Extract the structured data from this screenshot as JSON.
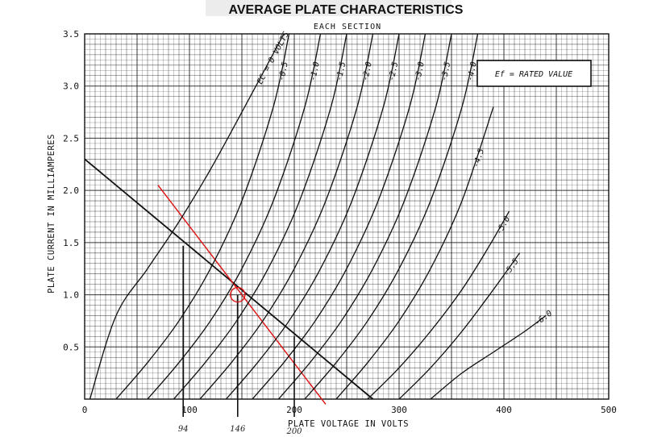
{
  "chart_data": {
    "type": "line",
    "title": "AVERAGE PLATE CHARACTERISTICS",
    "subtitle": "EACH SECTION",
    "xlabel": "PLATE VOLTAGE IN VOLTS",
    "ylabel": "PLATE CURRENT IN MILLIAMPERES",
    "xlim": [
      0,
      500
    ],
    "ylim": [
      0,
      3.5
    ],
    "x_ticks": [
      "0",
      "100",
      "200",
      "300",
      "400",
      "500"
    ],
    "y_ticks": [
      "0.5",
      "1.0",
      "1.5",
      "2.0",
      "2.5",
      "3.0",
      "3.5"
    ],
    "grid": true,
    "legend": {
      "text": "Ef = RATED VALUE",
      "position": "top-right"
    },
    "series": [
      {
        "name": "EC = 0 VOLTS",
        "x": [
          5,
          30,
          60,
          90,
          120,
          150,
          190
        ],
        "y": [
          0,
          0.8,
          1.25,
          1.7,
          2.2,
          2.75,
          3.5
        ]
      },
      {
        "name": "-0.5",
        "x": [
          30,
          60,
          90,
          120,
          150,
          180,
          195
        ],
        "y": [
          0,
          0.35,
          0.75,
          1.25,
          1.9,
          2.8,
          3.5
        ]
      },
      {
        "name": "-1.0",
        "x": [
          60,
          90,
          120,
          150,
          180,
          210,
          225
        ],
        "y": [
          0,
          0.35,
          0.75,
          1.25,
          1.9,
          2.8,
          3.5
        ]
      },
      {
        "name": "-1.5",
        "x": [
          85,
          115,
          145,
          175,
          205,
          235,
          250
        ],
        "y": [
          0,
          0.35,
          0.75,
          1.25,
          1.9,
          2.8,
          3.5
        ]
      },
      {
        "name": "-2.0",
        "x": [
          110,
          140,
          170,
          200,
          230,
          260,
          275
        ],
        "y": [
          0,
          0.35,
          0.75,
          1.25,
          1.9,
          2.8,
          3.5
        ]
      },
      {
        "name": "-2.5",
        "x": [
          135,
          165,
          195,
          225,
          255,
          285,
          300
        ],
        "y": [
          0,
          0.35,
          0.75,
          1.25,
          1.9,
          2.8,
          3.5
        ]
      },
      {
        "name": "-3.0",
        "x": [
          160,
          190,
          220,
          250,
          280,
          310,
          325
        ],
        "y": [
          0,
          0.35,
          0.75,
          1.25,
          1.9,
          2.8,
          3.5
        ]
      },
      {
        "name": "-3.5",
        "x": [
          185,
          215,
          245,
          275,
          305,
          335,
          350
        ],
        "y": [
          0,
          0.35,
          0.75,
          1.25,
          1.9,
          2.8,
          3.5
        ]
      },
      {
        "name": "-4.0",
        "x": [
          210,
          240,
          270,
          300,
          330,
          360,
          375
        ],
        "y": [
          0,
          0.35,
          0.75,
          1.25,
          1.9,
          2.8,
          3.5
        ]
      },
      {
        "name": "-4.5",
        "x": [
          240,
          270,
          300,
          330,
          360,
          390
        ],
        "y": [
          0,
          0.35,
          0.75,
          1.25,
          1.9,
          2.8
        ]
      },
      {
        "name": "-5.0",
        "x": [
          270,
          300,
          330,
          360,
          385,
          405
        ],
        "y": [
          0,
          0.3,
          0.65,
          1.05,
          1.45,
          1.8
        ]
      },
      {
        "name": "-5.5",
        "x": [
          300,
          330,
          360,
          390,
          415
        ],
        "y": [
          0,
          0.3,
          0.65,
          1.05,
          1.4
        ]
      },
      {
        "name": "-6.0",
        "x": [
          330,
          360,
          390,
          420,
          440
        ],
        "y": [
          0,
          0.25,
          0.45,
          0.65,
          0.8
        ]
      }
    ],
    "load_lines": [
      {
        "color": "#111111",
        "x": [
          0,
          275
        ],
        "y": [
          2.3,
          0
        ]
      },
      {
        "color": "#e01010",
        "x": [
          70,
          230
        ],
        "y": [
          2.05,
          -0.05
        ]
      }
    ],
    "annotations": [
      {
        "text": "94",
        "x": 94
      },
      {
        "text": "146",
        "x": 146
      },
      {
        "text": "200",
        "x": 200
      }
    ],
    "vertical_markers": [
      {
        "x": 94,
        "y_top": 1.47
      },
      {
        "x": 146,
        "y_top": 1.0
      },
      {
        "x": 200,
        "y_top": 0.6
      }
    ],
    "operating_point": {
      "x": 146,
      "y": 1.0,
      "color": "#e01010"
    }
  }
}
